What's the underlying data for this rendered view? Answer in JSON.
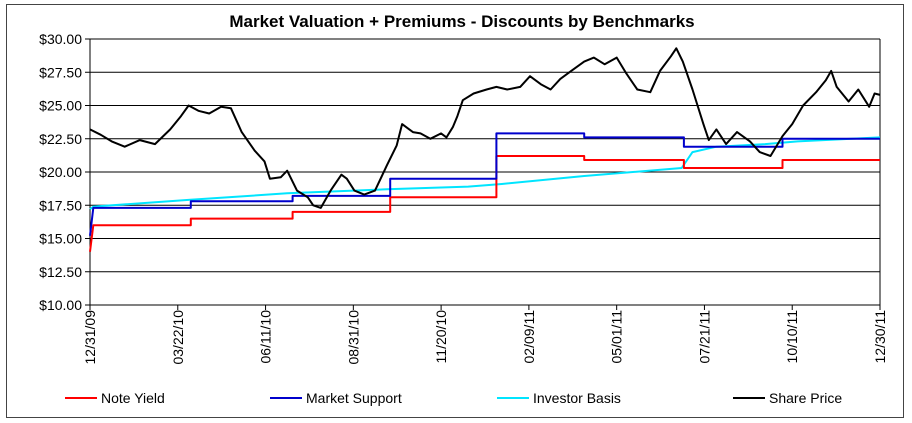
{
  "chart_data": {
    "type": "line",
    "title": "Market Valuation + Premiums - Discounts by Benchmarks",
    "xlabel": "",
    "ylabel": "",
    "ylim": [
      10,
      30
    ],
    "y_ticks": [
      "$10.00",
      "$12.50",
      "$15.00",
      "$17.50",
      "$20.00",
      "$22.50",
      "$25.00",
      "$27.50",
      "$30.00"
    ],
    "x_ticks": [
      "12/31/09",
      "03/22/10",
      "06/11/10",
      "08/31/10",
      "11/20/10",
      "02/09/11",
      "05/01/11",
      "07/21/11",
      "10/10/11",
      "12/30/11"
    ],
    "x_start": "12/31/09",
    "x_end": "12/30/11",
    "grid": "horizontal",
    "legend_position": "bottom",
    "series": [
      {
        "name": "Note Yield",
        "color": "#ff0000",
        "step": true,
        "points": [
          [
            "12/31/09",
            14.0
          ],
          [
            "01/03/10",
            16.0
          ],
          [
            "04/03/10",
            16.0
          ],
          [
            "04/03/10",
            16.5
          ],
          [
            "07/06/10",
            16.5
          ],
          [
            "07/06/10",
            17.0
          ],
          [
            "10/04/10",
            17.0
          ],
          [
            "10/04/10",
            18.1
          ],
          [
            "01/10/11",
            18.1
          ],
          [
            "01/10/11",
            21.2
          ],
          [
            "04/01/11",
            21.2
          ],
          [
            "04/01/11",
            20.9
          ],
          [
            "07/02/11",
            20.9
          ],
          [
            "07/02/11",
            20.3
          ],
          [
            "10/01/11",
            20.3
          ],
          [
            "10/01/11",
            20.9
          ],
          [
            "12/30/11",
            20.9
          ]
        ]
      },
      {
        "name": "Market Support",
        "color": "#0000cc",
        "step": true,
        "points": [
          [
            "12/31/09",
            15.2
          ],
          [
            "01/03/10",
            17.3
          ],
          [
            "04/03/10",
            17.3
          ],
          [
            "04/03/10",
            17.8
          ],
          [
            "07/06/10",
            17.8
          ],
          [
            "07/06/10",
            18.2
          ],
          [
            "10/04/10",
            18.2
          ],
          [
            "10/04/10",
            19.5
          ],
          [
            "01/10/11",
            19.5
          ],
          [
            "01/10/11",
            22.9
          ],
          [
            "04/01/11",
            22.9
          ],
          [
            "04/01/11",
            22.6
          ],
          [
            "07/02/11",
            22.6
          ],
          [
            "07/02/11",
            21.9
          ],
          [
            "10/01/11",
            21.9
          ],
          [
            "10/01/11",
            22.5
          ],
          [
            "12/30/11",
            22.5
          ]
        ]
      },
      {
        "name": "Investor Basis",
        "color": "#00e5ff",
        "step": false,
        "points": [
          [
            "12/31/09",
            17.2
          ],
          [
            "01/03/10",
            17.4
          ],
          [
            "04/01/10",
            17.9
          ],
          [
            "07/01/10",
            18.4
          ],
          [
            "10/01/10",
            18.7
          ],
          [
            "12/15/10",
            18.9
          ],
          [
            "01/15/11",
            19.1
          ],
          [
            "04/01/11",
            19.7
          ],
          [
            "06/30/11",
            20.3
          ],
          [
            "07/10/11",
            21.5
          ],
          [
            "08/01/11",
            21.9
          ],
          [
            "09/15/11",
            22.1
          ],
          [
            "10/15/11",
            22.3
          ],
          [
            "12/30/11",
            22.6
          ]
        ]
      },
      {
        "name": "Share Price",
        "color": "#000000",
        "step": false,
        "points": [
          [
            "12/31/09",
            23.2
          ],
          [
            "01/10/10",
            22.8
          ],
          [
            "01/20/10",
            22.3
          ],
          [
            "02/01/10",
            21.9
          ],
          [
            "02/15/10",
            22.4
          ],
          [
            "03/01/10",
            22.1
          ],
          [
            "03/15/10",
            23.2
          ],
          [
            "03/25/10",
            24.2
          ],
          [
            "04/01/10",
            25.0
          ],
          [
            "04/10/10",
            24.6
          ],
          [
            "04/20/10",
            24.4
          ],
          [
            "05/01/10",
            24.9
          ],
          [
            "05/10/10",
            24.8
          ],
          [
            "05/20/10",
            23.0
          ],
          [
            "06/01/10",
            21.6
          ],
          [
            "06/10/10",
            20.8
          ],
          [
            "06/15/10",
            19.5
          ],
          [
            "06/25/10",
            19.6
          ],
          [
            "07/01/10",
            20.1
          ],
          [
            "07/10/10",
            18.6
          ],
          [
            "07/20/10",
            18.1
          ],
          [
            "07/25/10",
            17.5
          ],
          [
            "08/01/10",
            17.3
          ],
          [
            "08/10/10",
            18.6
          ],
          [
            "08/20/10",
            19.8
          ],
          [
            "08/25/10",
            19.5
          ],
          [
            "09/01/10",
            18.6
          ],
          [
            "09/10/10",
            18.3
          ],
          [
            "09/20/10",
            18.6
          ],
          [
            "10/01/10",
            20.5
          ],
          [
            "10/10/10",
            22.0
          ],
          [
            "10/15/10",
            23.6
          ],
          [
            "10/25/10",
            23.0
          ],
          [
            "11/01/10",
            22.9
          ],
          [
            "11/10/10",
            22.5
          ],
          [
            "11/20/10",
            22.9
          ],
          [
            "11/25/10",
            22.6
          ],
          [
            "12/01/10",
            23.4
          ],
          [
            "12/05/10",
            24.2
          ],
          [
            "12/10/10",
            25.4
          ],
          [
            "12/20/10",
            25.9
          ],
          [
            "01/01/11",
            26.2
          ],
          [
            "01/10/11",
            26.4
          ],
          [
            "01/20/11",
            26.2
          ],
          [
            "02/01/11",
            26.4
          ],
          [
            "02/10/11",
            27.2
          ],
          [
            "02/20/11",
            26.6
          ],
          [
            "03/01/11",
            26.2
          ],
          [
            "03/10/11",
            27.0
          ],
          [
            "03/20/11",
            27.6
          ],
          [
            "04/01/11",
            28.3
          ],
          [
            "04/10/11",
            28.6
          ],
          [
            "04/20/11",
            28.1
          ],
          [
            "05/01/11",
            28.6
          ],
          [
            "05/10/11",
            27.4
          ],
          [
            "05/20/11",
            26.2
          ],
          [
            "06/01/11",
            26.0
          ],
          [
            "06/10/11",
            27.6
          ],
          [
            "06/20/11",
            28.7
          ],
          [
            "06/25/11",
            29.3
          ],
          [
            "07/01/11",
            28.3
          ],
          [
            "07/10/11",
            26.2
          ],
          [
            "07/20/11",
            23.6
          ],
          [
            "07/25/11",
            22.4
          ],
          [
            "08/01/11",
            23.2
          ],
          [
            "08/10/11",
            22.1
          ],
          [
            "08/20/11",
            23.0
          ],
          [
            "09/01/11",
            22.3
          ],
          [
            "09/10/11",
            21.5
          ],
          [
            "09/20/11",
            21.2
          ],
          [
            "10/01/11",
            22.7
          ],
          [
            "10/10/11",
            23.6
          ],
          [
            "10/20/11",
            25.0
          ],
          [
            "11/01/11",
            26.0
          ],
          [
            "11/10/11",
            26.9
          ],
          [
            "11/15/11",
            27.6
          ],
          [
            "11/20/11",
            26.4
          ],
          [
            "12/01/11",
            25.3
          ],
          [
            "12/10/11",
            26.2
          ],
          [
            "12/20/11",
            24.9
          ],
          [
            "12/25/11",
            25.9
          ],
          [
            "12/30/11",
            25.8
          ]
        ]
      }
    ]
  }
}
